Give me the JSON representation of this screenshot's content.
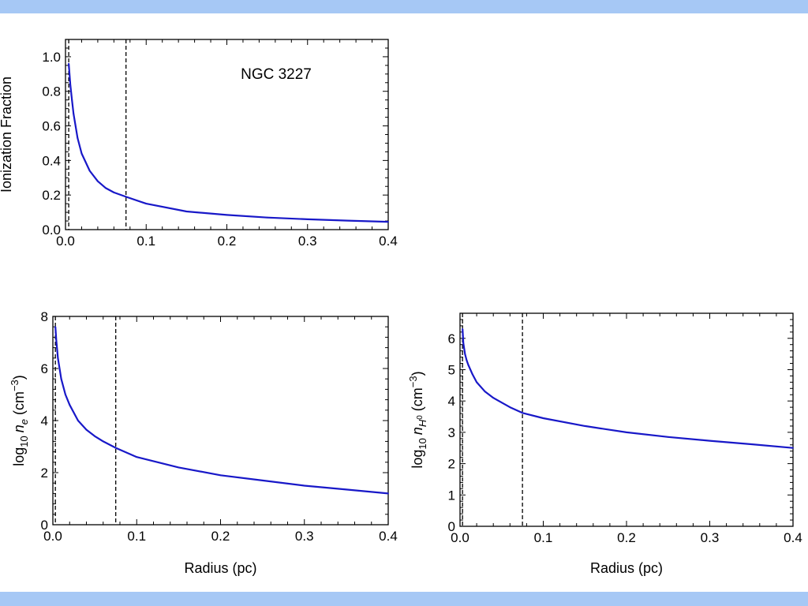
{
  "colors": {
    "band": "#a6c8f5",
    "curve": "#1818c8",
    "frame": "#000000"
  },
  "chart_data": [
    {
      "type": "line",
      "panel": "ionization-fraction",
      "annotation": "NGC 3227",
      "xlabel": "",
      "ylabel": "Ionization Fraction",
      "xlim": [
        0,
        0.4
      ],
      "ylim": [
        0,
        1.1
      ],
      "xticks": [
        "0.0",
        "0.1",
        "0.2",
        "0.3",
        "0.4"
      ],
      "yticks": [
        "0.0",
        "0.2",
        "0.4",
        "0.6",
        "0.8",
        "1.0"
      ],
      "vlines": [
        0.004,
        0.075
      ],
      "grid": false,
      "series": [
        {
          "x": [
            0.004,
            0.006,
            0.008,
            0.01,
            0.015,
            0.02,
            0.03,
            0.04,
            0.05,
            0.06,
            0.075,
            0.1,
            0.15,
            0.2,
            0.25,
            0.3,
            0.35,
            0.4
          ],
          "values": [
            0.96,
            0.84,
            0.75,
            0.67,
            0.53,
            0.44,
            0.34,
            0.28,
            0.24,
            0.215,
            0.19,
            0.15,
            0.105,
            0.085,
            0.07,
            0.06,
            0.052,
            0.045
          ]
        }
      ]
    },
    {
      "type": "line",
      "panel": "electron-density",
      "xlabel": "Radius (pc)",
      "ylabel": "log₁₀ n_e (cm⁻³)",
      "ylabel_parts": {
        "base": "log",
        "base_sub": "10",
        "symbol": "n",
        "symbol_sub": "e",
        "unit": "(cm",
        "unit_sup": "−3",
        "unit_close": ")"
      },
      "xlim": [
        0,
        0.4
      ],
      "ylim": [
        0,
        8
      ],
      "xticks": [
        "0.0",
        "0.1",
        "0.2",
        "0.3",
        "0.4"
      ],
      "yticks": [
        "0",
        "2",
        "4",
        "6",
        "8"
      ],
      "vlines": [
        0.003,
        0.075
      ],
      "grid": false,
      "series": [
        {
          "x": [
            0.003,
            0.004,
            0.006,
            0.008,
            0.01,
            0.015,
            0.02,
            0.03,
            0.04,
            0.05,
            0.06,
            0.075,
            0.1,
            0.15,
            0.2,
            0.25,
            0.3,
            0.35,
            0.4
          ],
          "values": [
            7.6,
            7.1,
            6.4,
            6.0,
            5.6,
            5.0,
            4.6,
            4.0,
            3.65,
            3.4,
            3.2,
            2.95,
            2.6,
            2.2,
            1.9,
            1.7,
            1.5,
            1.35,
            1.2
          ]
        }
      ]
    },
    {
      "type": "line",
      "panel": "neutral-hydrogen-density",
      "xlabel": "Radius (pc)",
      "ylabel": "log₁₀ n_H⁰ (cm⁻³)",
      "ylabel_parts": {
        "base": "log",
        "base_sub": "10",
        "symbol": "n",
        "symbol_sub": "H",
        "symbol_sub_sup": "0",
        "unit": "(cm",
        "unit_sup": "−3",
        "unit_close": ")"
      },
      "xlim": [
        0,
        0.4
      ],
      "ylim": [
        0,
        6.8
      ],
      "xticks": [
        "0.0",
        "0.1",
        "0.2",
        "0.3",
        "0.4"
      ],
      "yticks": [
        "0",
        "1",
        "2",
        "3",
        "4",
        "5",
        "6"
      ],
      "vlines": [
        0.003,
        0.075
      ],
      "grid": false,
      "series": [
        {
          "x": [
            0.003,
            0.004,
            0.006,
            0.008,
            0.01,
            0.015,
            0.02,
            0.03,
            0.04,
            0.05,
            0.06,
            0.075,
            0.1,
            0.15,
            0.2,
            0.25,
            0.3,
            0.35,
            0.4
          ],
          "values": [
            6.3,
            5.85,
            5.5,
            5.3,
            5.15,
            4.85,
            4.6,
            4.3,
            4.1,
            3.95,
            3.8,
            3.62,
            3.45,
            3.2,
            3.0,
            2.85,
            2.73,
            2.62,
            2.5
          ]
        }
      ]
    }
  ]
}
